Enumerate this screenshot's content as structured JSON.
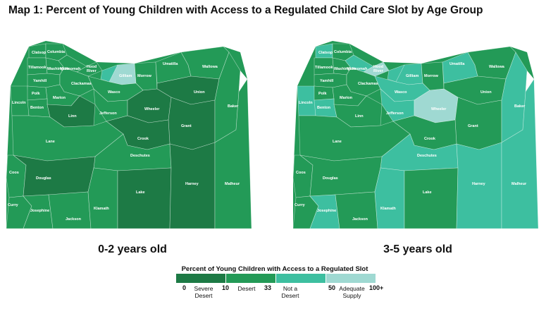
{
  "title": "Map 1: Percent of Young Children with Access to a Regulated Child Care Slot by Age Group",
  "maps": [
    {
      "label": "0-2 years old",
      "counties": {
        "Clatsop": "desert",
        "Columbia": "desert",
        "Tillamook": "desert",
        "Washington": "desert",
        "Multnomah": "desert",
        "Hood River": "desert",
        "Gilliam": "adequate",
        "Sherman": "notdesert",
        "Morrow": "desert",
        "Umatilla": "desert",
        "Union": "severe",
        "Wallowa": "desert",
        "Yamhill": "desert",
        "Clackamas": "desert",
        "Wasco": "desert",
        "Polk": "desert",
        "Marion": "desert",
        "Lincoln": "desert",
        "Benton": "desert",
        "Linn": "severe",
        "Jefferson": "desert",
        "Wheeler": "severe",
        "Grant": "severe",
        "Baker": "desert",
        "Crook": "severe",
        "Lane": "desert",
        "Deschutes": "desert",
        "Coos": "desert",
        "Douglas": "severe",
        "Curry": "desert",
        "Josephine": "desert",
        "Jackson": "desert",
        "Klamath": "desert",
        "Lake": "severe",
        "Harney": "severe",
        "Malheur": "desert"
      }
    },
    {
      "label": "3-5 years old",
      "counties": {
        "Clatsop": "notdesert",
        "Columbia": "desert",
        "Tillamook": "desert",
        "Washington": "desert",
        "Multnomah": "notdesert",
        "Hood River": "adequate",
        "Gilliam": "notdesert",
        "Sherman": "notdesert",
        "Morrow": "desert",
        "Umatilla": "notdesert",
        "Union": "desert",
        "Wallowa": "desert",
        "Yamhill": "desert",
        "Clackamas": "desert",
        "Wasco": "notdesert",
        "Polk": "desert",
        "Marion": "desert",
        "Lincoln": "notdesert",
        "Benton": "notdesert",
        "Linn": "desert",
        "Jefferson": "notdesert",
        "Wheeler": "adequate",
        "Grant": "desert",
        "Baker": "notdesert",
        "Crook": "desert",
        "Lane": "desert",
        "Deschutes": "notdesert",
        "Coos": "desert",
        "Douglas": "desert",
        "Curry": "desert",
        "Josephine": "notdesert",
        "Jackson": "desert",
        "Klamath": "notdesert",
        "Lake": "desert",
        "Harney": "notdesert",
        "Malheur": "notdesert"
      }
    }
  ],
  "legend": {
    "title": "Percent of Young Children with Access to a Regulated Slot",
    "ticks": [
      "0",
      "10",
      "33",
      "50",
      "100+"
    ],
    "categories": [
      {
        "key": "severe",
        "label_line1": "Severe",
        "label_line2": "Desert",
        "color": "#1d7a45"
      },
      {
        "key": "desert",
        "label_line1": "Desert",
        "label_line2": "",
        "color": "#239a57"
      },
      {
        "key": "notdesert",
        "label_line1": "Not a",
        "label_line2": "Desert",
        "color": "#3dbfa0"
      },
      {
        "key": "adequate",
        "label_line1": "Adequate",
        "label_line2": "Supply",
        "color": "#9fd9d2"
      }
    ]
  }
}
